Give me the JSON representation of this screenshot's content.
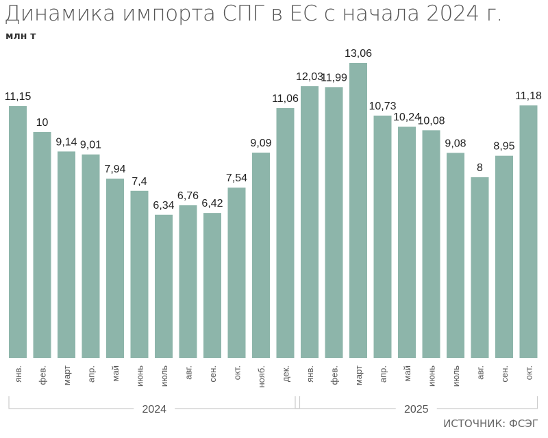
{
  "chart_data": {
    "type": "bar",
    "title": "Динамика импорта СПГ в ЕС с начала 2024 г.",
    "unit": "млн т",
    "source": "ИСТОЧНИК: ФСЭГ",
    "categories": [
      "янв.",
      "фев.",
      "март",
      "апр.",
      "май",
      "июнь",
      "июль",
      "авг.",
      "сен.",
      "окт.",
      "нояб.",
      "дек.",
      "янв.",
      "фев.",
      "март",
      "апр.",
      "май",
      "июнь",
      "июль",
      "авг.",
      "сен.",
      "окт."
    ],
    "values": [
      11.15,
      10,
      9.14,
      9.01,
      7.94,
      7.4,
      6.34,
      6.76,
      6.42,
      7.54,
      9.09,
      11.06,
      12.03,
      11.99,
      13.06,
      10.73,
      10.24,
      10.08,
      9.08,
      8,
      8.95,
      11.18
    ],
    "value_labels": [
      "11,15",
      "10",
      "9,14",
      "9,01",
      "7,94",
      "7,4",
      "6,34",
      "6,76",
      "6,42",
      "7,54",
      "9,09",
      "11,06",
      "12,03",
      "11,99",
      "13,06",
      "10,73",
      "10,24",
      "10,08",
      "9,08",
      "8",
      "8,95",
      "11,18"
    ],
    "groups": [
      {
        "label": "2024",
        "count": 12
      },
      {
        "label": "2025",
        "count": 10
      }
    ],
    "ylim": [
      0,
      13.06
    ],
    "grid": false,
    "bar_color": "#8db5aa"
  }
}
